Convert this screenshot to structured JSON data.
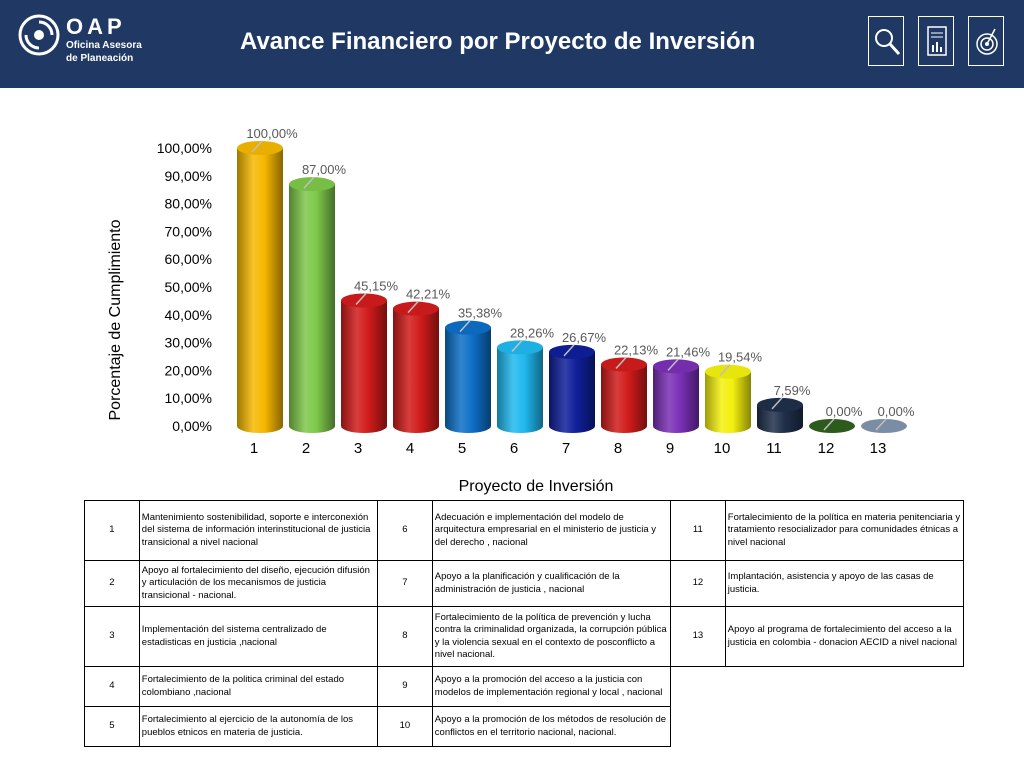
{
  "header": {
    "org_short": "OAP",
    "org_line1": "Oficina Asesora",
    "org_line2": "de Planeación",
    "title": "Avance Financiero por Proyecto de Inversión",
    "icons": [
      "search-icon",
      "report-icon",
      "target-icon"
    ]
  },
  "colors": {
    "header_bg": "#1f3864",
    "bars": [
      "#f5b800",
      "#7ec84a",
      "#d11b1b",
      "#d11b1b",
      "#0d6fc7",
      "#20b8ef",
      "#0f1f9a",
      "#d11b1b",
      "#7a2fb5",
      "#f3f00f",
      "#1f2f4a",
      "#2f5f1f",
      "#8094ad"
    ]
  },
  "chart_data": {
    "type": "bar",
    "categories": [
      "1",
      "2",
      "3",
      "4",
      "5",
      "6",
      "7",
      "8",
      "9",
      "10",
      "11",
      "12",
      "13"
    ],
    "values": [
      100.0,
      87.0,
      45.15,
      42.21,
      35.38,
      28.26,
      26.67,
      22.13,
      21.46,
      19.54,
      7.59,
      0.0,
      0.0
    ],
    "data_labels": [
      "100,00%",
      "87,00%",
      "45,15%",
      "42,21%",
      "35,38%",
      "28,26%",
      "26,67%",
      "22,13%",
      "21,46%",
      "19,54%",
      "7,59%",
      "0,00%",
      "0,00%"
    ],
    "title": "",
    "xlabel": "Proyecto de Inversión",
    "ylabel": "Porcentaje de Cumplimiento",
    "ylim": [
      0,
      100
    ],
    "yticks": [
      "0,00%",
      "10,00%",
      "20,00%",
      "30,00%",
      "40,00%",
      "50,00%",
      "60,00%",
      "70,00%",
      "80,00%",
      "90,00%",
      "100,00%"
    ],
    "grid": false,
    "legend": "none"
  },
  "projects": {
    "col1": [
      {
        "num": "1",
        "desc": "Mantenimiento sostenibilidad, soporte  e interconexión del sistema de información interinstitucional de justicia transicional a nivel nacional"
      },
      {
        "num": "2",
        "desc": "Apoyo al fortalecimiento del diseño, ejecución difusión y articulación de los mecanismos de justicia transicional - nacional."
      },
      {
        "num": "3",
        "desc": "Implementación del sistema centralizado de estadisticas en justicia ,nacional"
      },
      {
        "num": "4",
        "desc": "Fortalecimiento de la politica criminal del estado colombiano ,nacional"
      },
      {
        "num": "5",
        "desc": "Fortalecimiento al ejercicio de la autonomía de los pueblos etnicos en materia de justicia."
      }
    ],
    "col2": [
      {
        "num": "6",
        "desc": "Adecuación e implementación del modelo de arquitectura empresarial en el ministerio de justicia y del derecho , nacional"
      },
      {
        "num": "7",
        "desc": "Apoyo a la planificación y cualificación de la administración de justicia , nacional"
      },
      {
        "num": "8",
        "desc": "Fortalecimiento de la política de prevención y lucha contra la criminalidad organizada, la corrupción pública y la violencia sexual en el contexto de posconflicto a nivel nacional."
      },
      {
        "num": "9",
        "desc": "Apoyo a la promoción del acceso a la justicia con modelos de implementación regional y local , nacional"
      },
      {
        "num": "10",
        "desc": "Apoyo a la promoción de los métodos de resolución de conflictos en el territorio nacional, nacional."
      }
    ],
    "col3": [
      {
        "num": "11",
        "desc": "Fortalecimiento de la política en materia penitenciaria y tratamiento resocializador para comunidades étnicas a nivel nacional"
      },
      {
        "num": "12",
        "desc": "Implantación, asistencia y apoyo de las casas de justicia."
      },
      {
        "num": "13",
        "desc": "Apoyo al programa de fortalecimiento del acceso a la justicia en colombia - donacion AECID a nivel nacional"
      }
    ]
  }
}
